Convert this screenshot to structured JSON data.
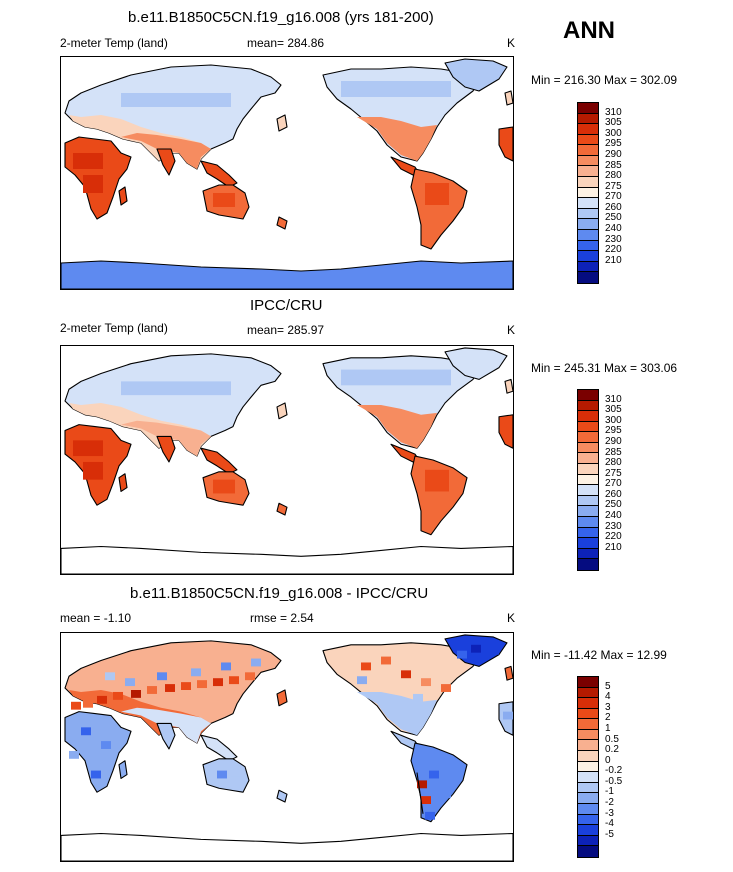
{
  "season": "ANN",
  "unit": "K",
  "panels": [
    {
      "title": "b.e11.B1850C5CN.f19_g16.008 (yrs 181-200)",
      "left_label": "2-meter Temp (land)",
      "mean_label": "mean= 284.86",
      "minmax": "Min = 216.30 Max = 302.09",
      "variant": "model"
    },
    {
      "title": "IPCC/CRU",
      "left_label": "2-meter Temp (land)",
      "mean_label": "mean= 285.97",
      "minmax": "Min = 245.31 Max = 303.06",
      "variant": "obs"
    },
    {
      "title": "b.e11.B1850C5CN.f19_g16.008 - IPCC/CRU",
      "left_label": "mean =  -1.10",
      "mean_label": "rmse =   2.54",
      "minmax": "Min = -11.42 Max =  12.99",
      "variant": "diff"
    }
  ],
  "colorbar_abs": {
    "labels": [
      "310",
      "305",
      "300",
      "295",
      "290",
      "285",
      "280",
      "275",
      "270",
      "260",
      "250",
      "240",
      "230",
      "220",
      "210"
    ],
    "colors": [
      "#7a0000",
      "#b51a00",
      "#d82e08",
      "#ea4a18",
      "#f26a38",
      "#f68c60",
      "#f8b090",
      "#fad4bc",
      "#fdf2e4",
      "#d4e2f8",
      "#afc8f4",
      "#8aacf0",
      "#5e8af0",
      "#3563ec",
      "#1a40dc",
      "#0d22b8",
      "#050c80"
    ]
  },
  "colorbar_diff": {
    "labels": [
      "5",
      "4",
      "3",
      "2",
      "1",
      "0.5",
      "0.2",
      "0",
      "-0.2",
      "-0.5",
      "-1",
      "-2",
      "-3",
      "-4",
      "-5"
    ],
    "colors": [
      "#7a0000",
      "#b51a00",
      "#d82e08",
      "#ea4a18",
      "#f26a38",
      "#f68c60",
      "#f8b090",
      "#fad4bc",
      "#fdf2e4",
      "#d4e2f8",
      "#afc8f4",
      "#8aacf0",
      "#5e8af0",
      "#3563ec",
      "#1a40dc",
      "#0d22b8",
      "#050c80"
    ]
  }
}
